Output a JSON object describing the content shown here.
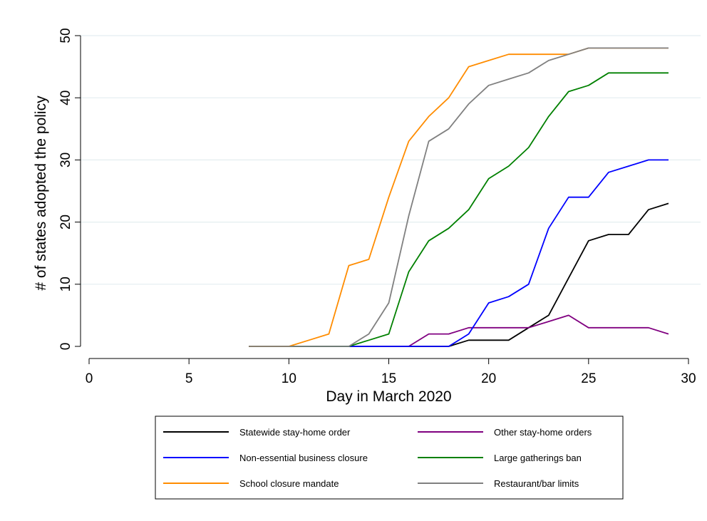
{
  "chart_data": {
    "type": "line",
    "xlabel": "Day in March 2020",
    "ylabel": "# of states adopted the policy",
    "xlim": [
      0,
      30
    ],
    "ylim": [
      0,
      50
    ],
    "xticks": [
      0,
      5,
      10,
      15,
      20,
      25,
      30
    ],
    "yticks": [
      0,
      10,
      20,
      30,
      40,
      50
    ],
    "grid": "horizontal",
    "legend_position": "bottom",
    "x": [
      8,
      9,
      10,
      11,
      12,
      13,
      14,
      15,
      16,
      17,
      18,
      19,
      20,
      21,
      22,
      23,
      24,
      25,
      26,
      27,
      28,
      29
    ],
    "series": [
      {
        "name": "Statewide stay-home order",
        "color": "#000000",
        "values": [
          0,
          0,
          0,
          0,
          0,
          0,
          0,
          0,
          0,
          0,
          0,
          1,
          1,
          1,
          3,
          5,
          11,
          17,
          18,
          18,
          22,
          23
        ]
      },
      {
        "name": "Other stay-home orders",
        "color": "#800080",
        "values": [
          0,
          0,
          0,
          0,
          0,
          0,
          0,
          0,
          0,
          2,
          2,
          3,
          3,
          3,
          3,
          4,
          5,
          3,
          3,
          3,
          3,
          2
        ]
      },
      {
        "name": "Non-essential business closure",
        "color": "#0000ff",
        "values": [
          0,
          0,
          0,
          0,
          0,
          0,
          0,
          0,
          0,
          0,
          0,
          2,
          7,
          8,
          10,
          19,
          24,
          24,
          28,
          29,
          30,
          30
        ]
      },
      {
        "name": "Large gatherings ban",
        "color": "#008000",
        "values": [
          0,
          0,
          0,
          0,
          0,
          0,
          1,
          2,
          12,
          17,
          19,
          22,
          27,
          29,
          32,
          37,
          41,
          42,
          44,
          44,
          44,
          44
        ]
      },
      {
        "name": "School closure mandate",
        "color": "#ff8c00",
        "values": [
          0,
          0,
          0,
          1,
          2,
          13,
          14,
          24,
          33,
          37,
          40,
          45,
          46,
          47,
          47,
          47,
          47,
          48,
          48,
          48,
          48,
          48
        ]
      },
      {
        "name": "Restaurant/bar limits",
        "color": "#808080",
        "values": [
          0,
          0,
          0,
          0,
          0,
          0,
          2,
          7,
          21,
          33,
          35,
          39,
          42,
          43,
          44,
          46,
          47,
          48,
          48,
          48,
          48,
          48
        ]
      }
    ]
  }
}
